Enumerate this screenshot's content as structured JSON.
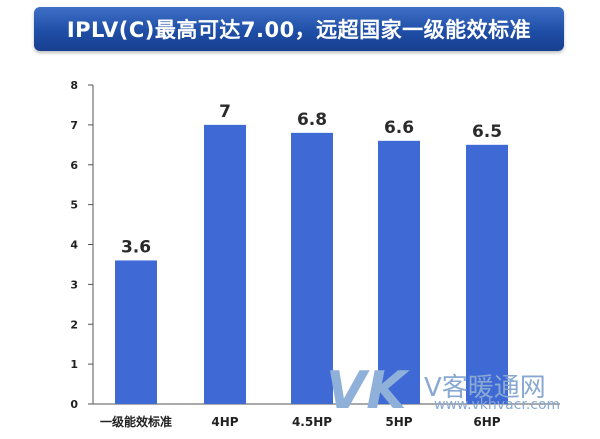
{
  "title": "IPLV(C)最高可达7.00，远超国家一级能效标准",
  "chart_data": {
    "type": "bar",
    "title": "IPLV(C)最高可达7.00，远超国家一级能效标准",
    "categories": [
      "一级能效标准",
      "4HP",
      "4.5HP",
      "5HP",
      "6HP"
    ],
    "values": [
      3.6,
      7,
      6.8,
      6.6,
      6.5
    ],
    "value_labels": [
      "3.6",
      "7",
      "6.8",
      "6.6",
      "6.5"
    ],
    "y_ticks": [
      "0",
      "1",
      "2",
      "3",
      "4",
      "5",
      "6",
      "7",
      "8"
    ],
    "ylim": [
      0,
      8
    ],
    "xlabel": "",
    "ylabel": "",
    "grid": false,
    "bar_color": "#3f6ad6"
  },
  "watermark": {
    "logo": "VK",
    "brand": "V客暖通网",
    "url": "www.vkhvacr.com"
  }
}
